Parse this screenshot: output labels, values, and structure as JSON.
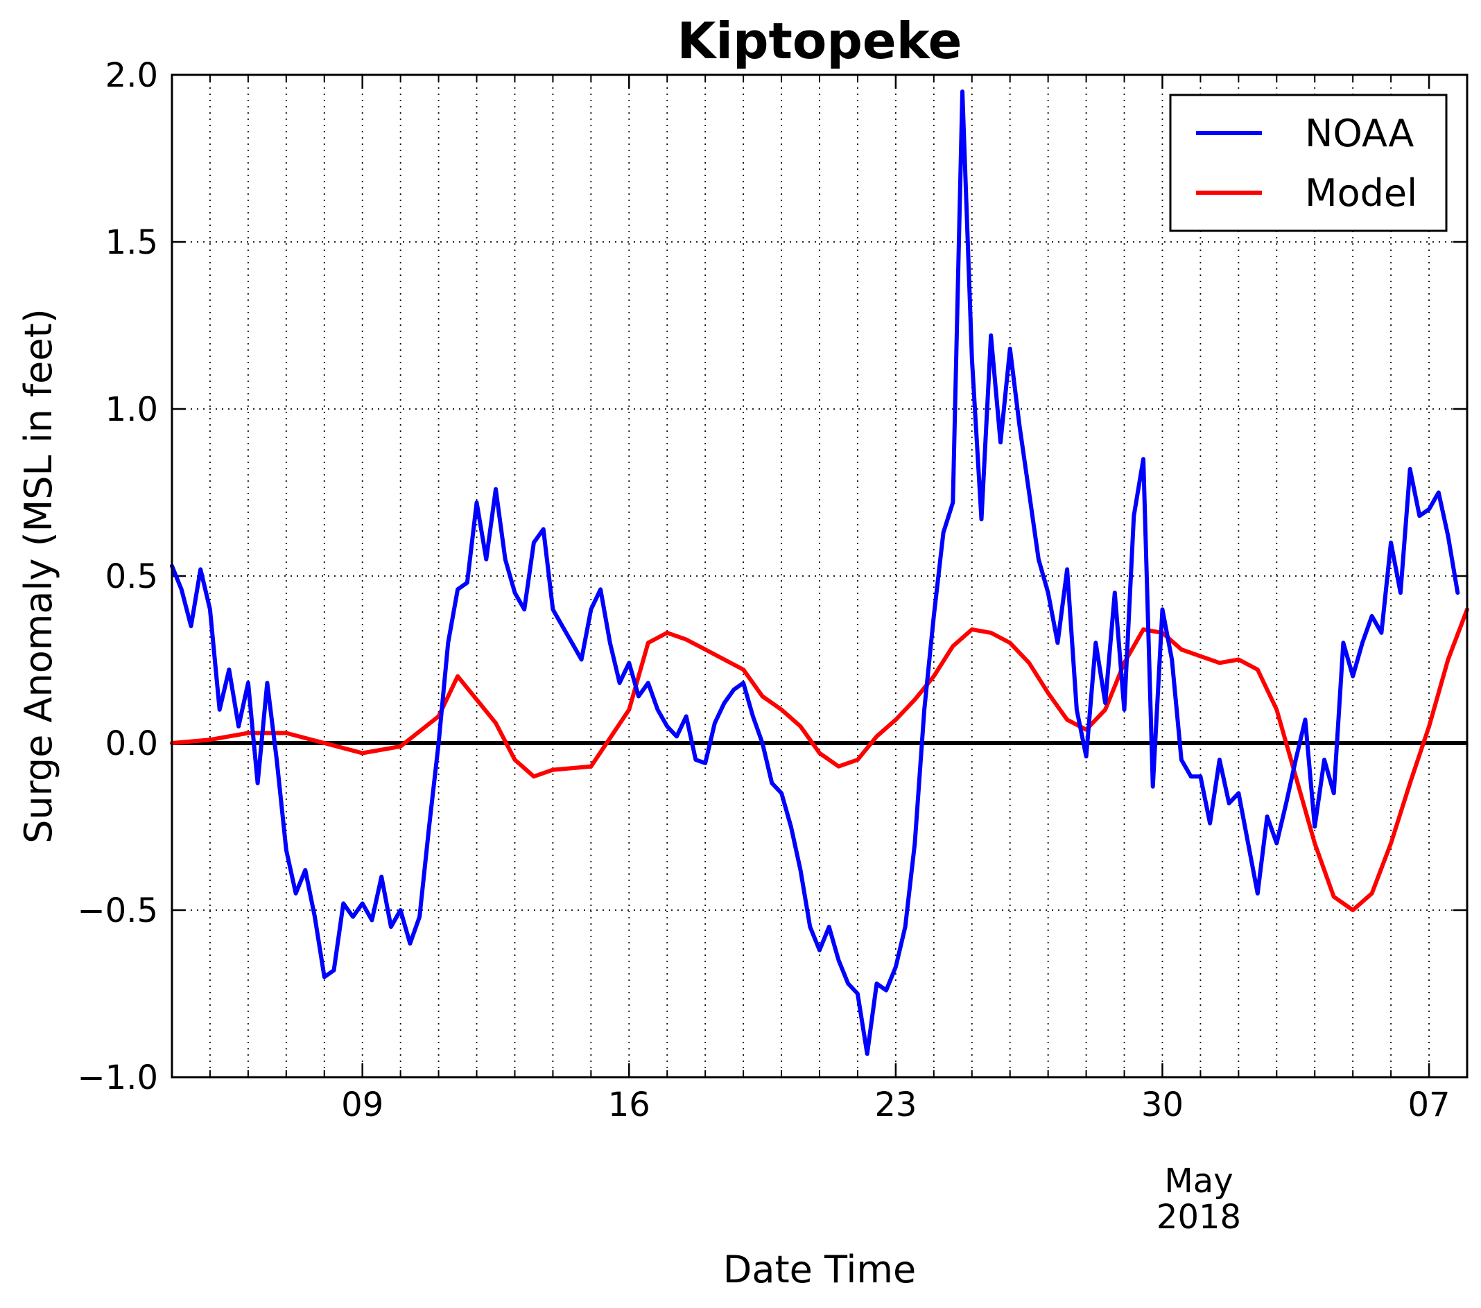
{
  "chart_data": {
    "type": "line",
    "title": "Kiptopeke",
    "xlabel": "Date Time",
    "ylabel": "Surge Anomaly (MSL in feet)",
    "x_axis": {
      "type": "date",
      "range": [
        "2018-04-04T00:00",
        "2018-05-08T00:00"
      ],
      "major_ticks": [
        {
          "date": "2018-04-09",
          "label": "09"
        },
        {
          "date": "2018-04-16",
          "label": "16"
        },
        {
          "date": "2018-04-23",
          "label": "23"
        },
        {
          "date": "2018-04-30",
          "label": "30"
        },
        {
          "date": "2018-05-07",
          "label": "07"
        }
      ],
      "minor_ticks": "daily",
      "offset_labels": [
        "May",
        "2018"
      ]
    },
    "y_axis": {
      "ylim": [
        -1.0,
        2.0
      ],
      "ticks": [
        -1.0,
        -0.5,
        0.0,
        0.5,
        1.0,
        1.5,
        2.0
      ],
      "tick_labels": [
        "−1.0",
        "−0.5",
        "0.0",
        "0.5",
        "1.0",
        "1.5",
        "2.0"
      ]
    },
    "grid": true,
    "zero_line": true,
    "legend": {
      "placement": "top-right"
    },
    "series": [
      {
        "name": "NOAA",
        "color": "#0000ff",
        "points": [
          [
            "2018-04-04T00:00",
            0.53
          ],
          [
            "2018-04-04T06:00",
            0.46
          ],
          [
            "2018-04-04T12:00",
            0.35
          ],
          [
            "2018-04-04T18:00",
            0.52
          ],
          [
            "2018-04-05T00:00",
            0.4
          ],
          [
            "2018-04-05T06:00",
            0.1
          ],
          [
            "2018-04-05T12:00",
            0.22
          ],
          [
            "2018-04-05T18:00",
            0.05
          ],
          [
            "2018-04-06T00:00",
            0.18
          ],
          [
            "2018-04-06T06:00",
            -0.12
          ],
          [
            "2018-04-06T12:00",
            0.18
          ],
          [
            "2018-04-06T18:00",
            -0.05
          ],
          [
            "2018-04-07T00:00",
            -0.32
          ],
          [
            "2018-04-07T06:00",
            -0.45
          ],
          [
            "2018-04-07T12:00",
            -0.38
          ],
          [
            "2018-04-07T18:00",
            -0.52
          ],
          [
            "2018-04-08T00:00",
            -0.7
          ],
          [
            "2018-04-08T06:00",
            -0.68
          ],
          [
            "2018-04-08T12:00",
            -0.48
          ],
          [
            "2018-04-08T18:00",
            -0.52
          ],
          [
            "2018-04-09T00:00",
            -0.48
          ],
          [
            "2018-04-09T06:00",
            -0.53
          ],
          [
            "2018-04-09T12:00",
            -0.4
          ],
          [
            "2018-04-09T18:00",
            -0.55
          ],
          [
            "2018-04-10T00:00",
            -0.5
          ],
          [
            "2018-04-10T06:00",
            -0.6
          ],
          [
            "2018-04-10T12:00",
            -0.52
          ],
          [
            "2018-04-10T18:00",
            -0.25
          ],
          [
            "2018-04-11T00:00",
            0.0
          ],
          [
            "2018-04-11T06:00",
            0.3
          ],
          [
            "2018-04-11T12:00",
            0.46
          ],
          [
            "2018-04-11T18:00",
            0.48
          ],
          [
            "2018-04-12T00:00",
            0.72
          ],
          [
            "2018-04-12T06:00",
            0.55
          ],
          [
            "2018-04-12T12:00",
            0.76
          ],
          [
            "2018-04-12T18:00",
            0.55
          ],
          [
            "2018-04-13T00:00",
            0.45
          ],
          [
            "2018-04-13T06:00",
            0.4
          ],
          [
            "2018-04-13T12:00",
            0.6
          ],
          [
            "2018-04-13T18:00",
            0.64
          ],
          [
            "2018-04-14T00:00",
            0.4
          ],
          [
            "2018-04-14T06:00",
            0.35
          ],
          [
            "2018-04-14T12:00",
            0.3
          ],
          [
            "2018-04-14T18:00",
            0.25
          ],
          [
            "2018-04-15T00:00",
            0.4
          ],
          [
            "2018-04-15T06:00",
            0.46
          ],
          [
            "2018-04-15T12:00",
            0.3
          ],
          [
            "2018-04-15T18:00",
            0.18
          ],
          [
            "2018-04-16T00:00",
            0.24
          ],
          [
            "2018-04-16T06:00",
            0.14
          ],
          [
            "2018-04-16T12:00",
            0.18
          ],
          [
            "2018-04-16T18:00",
            0.1
          ],
          [
            "2018-04-17T00:00",
            0.05
          ],
          [
            "2018-04-17T06:00",
            0.02
          ],
          [
            "2018-04-17T12:00",
            0.08
          ],
          [
            "2018-04-17T18:00",
            -0.05
          ],
          [
            "2018-04-18T00:00",
            -0.06
          ],
          [
            "2018-04-18T06:00",
            0.06
          ],
          [
            "2018-04-18T12:00",
            0.12
          ],
          [
            "2018-04-18T18:00",
            0.16
          ],
          [
            "2018-04-19T00:00",
            0.18
          ],
          [
            "2018-04-19T06:00",
            0.08
          ],
          [
            "2018-04-19T12:00",
            0.0
          ],
          [
            "2018-04-19T18:00",
            -0.12
          ],
          [
            "2018-04-20T00:00",
            -0.15
          ],
          [
            "2018-04-20T06:00",
            -0.25
          ],
          [
            "2018-04-20T12:00",
            -0.38
          ],
          [
            "2018-04-20T18:00",
            -0.55
          ],
          [
            "2018-04-21T00:00",
            -0.62
          ],
          [
            "2018-04-21T06:00",
            -0.55
          ],
          [
            "2018-04-21T12:00",
            -0.65
          ],
          [
            "2018-04-21T18:00",
            -0.72
          ],
          [
            "2018-04-22T00:00",
            -0.75
          ],
          [
            "2018-04-22T06:00",
            -0.93
          ],
          [
            "2018-04-22T12:00",
            -0.72
          ],
          [
            "2018-04-22T18:00",
            -0.74
          ],
          [
            "2018-04-23T00:00",
            -0.67
          ],
          [
            "2018-04-23T06:00",
            -0.55
          ],
          [
            "2018-04-23T12:00",
            -0.3
          ],
          [
            "2018-04-23T18:00",
            0.1
          ],
          [
            "2018-04-24T00:00",
            0.38
          ],
          [
            "2018-04-24T06:00",
            0.63
          ],
          [
            "2018-04-24T12:00",
            0.72
          ],
          [
            "2018-04-24T18:00",
            1.95
          ],
          [
            "2018-04-25T00:00",
            1.15
          ],
          [
            "2018-04-25T06:00",
            0.67
          ],
          [
            "2018-04-25T12:00",
            1.22
          ],
          [
            "2018-04-25T18:00",
            0.9
          ],
          [
            "2018-04-26T00:00",
            1.18
          ],
          [
            "2018-04-26T06:00",
            0.95
          ],
          [
            "2018-04-26T12:00",
            0.75
          ],
          [
            "2018-04-26T18:00",
            0.55
          ],
          [
            "2018-04-27T00:00",
            0.45
          ],
          [
            "2018-04-27T06:00",
            0.3
          ],
          [
            "2018-04-27T12:00",
            0.52
          ],
          [
            "2018-04-27T18:00",
            0.1
          ],
          [
            "2018-04-28T00:00",
            -0.04
          ],
          [
            "2018-04-28T06:00",
            0.3
          ],
          [
            "2018-04-28T12:00",
            0.12
          ],
          [
            "2018-04-28T18:00",
            0.45
          ],
          [
            "2018-04-29T00:00",
            0.1
          ],
          [
            "2018-04-29T06:00",
            0.68
          ],
          [
            "2018-04-29T12:00",
            0.85
          ],
          [
            "2018-04-29T18:00",
            -0.13
          ],
          [
            "2018-04-30T00:00",
            0.4
          ],
          [
            "2018-04-30T06:00",
            0.25
          ],
          [
            "2018-04-30T12:00",
            -0.05
          ],
          [
            "2018-04-30T18:00",
            -0.1
          ],
          [
            "2018-05-01T00:00",
            -0.1
          ],
          [
            "2018-05-01T06:00",
            -0.24
          ],
          [
            "2018-05-01T12:00",
            -0.05
          ],
          [
            "2018-05-01T18:00",
            -0.18
          ],
          [
            "2018-05-02T00:00",
            -0.15
          ],
          [
            "2018-05-02T06:00",
            -0.3
          ],
          [
            "2018-05-02T12:00",
            -0.45
          ],
          [
            "2018-05-02T18:00",
            -0.22
          ],
          [
            "2018-05-03T00:00",
            -0.3
          ],
          [
            "2018-05-03T06:00",
            -0.18
          ],
          [
            "2018-05-03T12:00",
            -0.05
          ],
          [
            "2018-05-03T18:00",
            0.07
          ],
          [
            "2018-05-04T00:00",
            -0.25
          ],
          [
            "2018-05-04T06:00",
            -0.05
          ],
          [
            "2018-05-04T12:00",
            -0.15
          ],
          [
            "2018-05-04T18:00",
            0.3
          ],
          [
            "2018-05-05T00:00",
            0.2
          ],
          [
            "2018-05-05T06:00",
            0.3
          ],
          [
            "2018-05-05T12:00",
            0.38
          ],
          [
            "2018-05-05T18:00",
            0.33
          ],
          [
            "2018-05-06T00:00",
            0.6
          ],
          [
            "2018-05-06T06:00",
            0.45
          ],
          [
            "2018-05-06T12:00",
            0.82
          ],
          [
            "2018-05-06T18:00",
            0.68
          ],
          [
            "2018-05-07T00:00",
            0.7
          ],
          [
            "2018-05-07T06:00",
            0.75
          ],
          [
            "2018-05-07T12:00",
            0.62
          ],
          [
            "2018-05-07T18:00",
            0.45
          ]
        ]
      },
      {
        "name": "Model",
        "color": "#ff0000",
        "points": [
          [
            "2018-04-04T00:00",
            0.0
          ],
          [
            "2018-04-05T00:00",
            0.01
          ],
          [
            "2018-04-06T00:00",
            0.03
          ],
          [
            "2018-04-07T00:00",
            0.03
          ],
          [
            "2018-04-08T00:00",
            0.0
          ],
          [
            "2018-04-09T00:00",
            -0.03
          ],
          [
            "2018-04-10T00:00",
            -0.01
          ],
          [
            "2018-04-11T00:00",
            0.08
          ],
          [
            "2018-04-11T12:00",
            0.2
          ],
          [
            "2018-04-12T00:00",
            0.13
          ],
          [
            "2018-04-12T12:00",
            0.06
          ],
          [
            "2018-04-13T00:00",
            -0.05
          ],
          [
            "2018-04-13T12:00",
            -0.1
          ],
          [
            "2018-04-14T00:00",
            -0.08
          ],
          [
            "2018-04-15T00:00",
            -0.07
          ],
          [
            "2018-04-16T00:00",
            0.1
          ],
          [
            "2018-04-16T12:00",
            0.3
          ],
          [
            "2018-04-17T00:00",
            0.33
          ],
          [
            "2018-04-17T12:00",
            0.31
          ],
          [
            "2018-04-18T00:00",
            0.28
          ],
          [
            "2018-04-19T00:00",
            0.22
          ],
          [
            "2018-04-19T12:00",
            0.14
          ],
          [
            "2018-04-20T00:00",
            0.1
          ],
          [
            "2018-04-20T12:00",
            0.05
          ],
          [
            "2018-04-21T00:00",
            -0.03
          ],
          [
            "2018-04-21T12:00",
            -0.07
          ],
          [
            "2018-04-22T00:00",
            -0.05
          ],
          [
            "2018-04-22T12:00",
            0.02
          ],
          [
            "2018-04-23T00:00",
            0.07
          ],
          [
            "2018-04-23T12:00",
            0.13
          ],
          [
            "2018-04-24T00:00",
            0.2
          ],
          [
            "2018-04-24T12:00",
            0.29
          ],
          [
            "2018-04-25T00:00",
            0.34
          ],
          [
            "2018-04-25T12:00",
            0.33
          ],
          [
            "2018-04-26T00:00",
            0.3
          ],
          [
            "2018-04-26T12:00",
            0.24
          ],
          [
            "2018-04-27T00:00",
            0.15
          ],
          [
            "2018-04-27T12:00",
            0.07
          ],
          [
            "2018-04-28T00:00",
            0.04
          ],
          [
            "2018-04-28T12:00",
            0.1
          ],
          [
            "2018-04-29T00:00",
            0.24
          ],
          [
            "2018-04-29T12:00",
            0.34
          ],
          [
            "2018-04-30T00:00",
            0.33
          ],
          [
            "2018-04-30T12:00",
            0.28
          ],
          [
            "2018-05-01T00:00",
            0.26
          ],
          [
            "2018-05-01T12:00",
            0.24
          ],
          [
            "2018-05-02T00:00",
            0.25
          ],
          [
            "2018-05-02T12:00",
            0.22
          ],
          [
            "2018-05-03T00:00",
            0.1
          ],
          [
            "2018-05-03T12:00",
            -0.1
          ],
          [
            "2018-05-04T00:00",
            -0.3
          ],
          [
            "2018-05-04T12:00",
            -0.46
          ],
          [
            "2018-05-05T00:00",
            -0.5
          ],
          [
            "2018-05-05T12:00",
            -0.45
          ],
          [
            "2018-05-06T00:00",
            -0.3
          ],
          [
            "2018-05-06T12:00",
            -0.12
          ],
          [
            "2018-05-07T00:00",
            0.05
          ],
          [
            "2018-05-07T12:00",
            0.25
          ],
          [
            "2018-05-08T00:00",
            0.4
          ]
        ]
      }
    ]
  },
  "colors": {
    "noaa": "#0000ff",
    "model": "#ff0000",
    "zero_line": "#000000"
  }
}
